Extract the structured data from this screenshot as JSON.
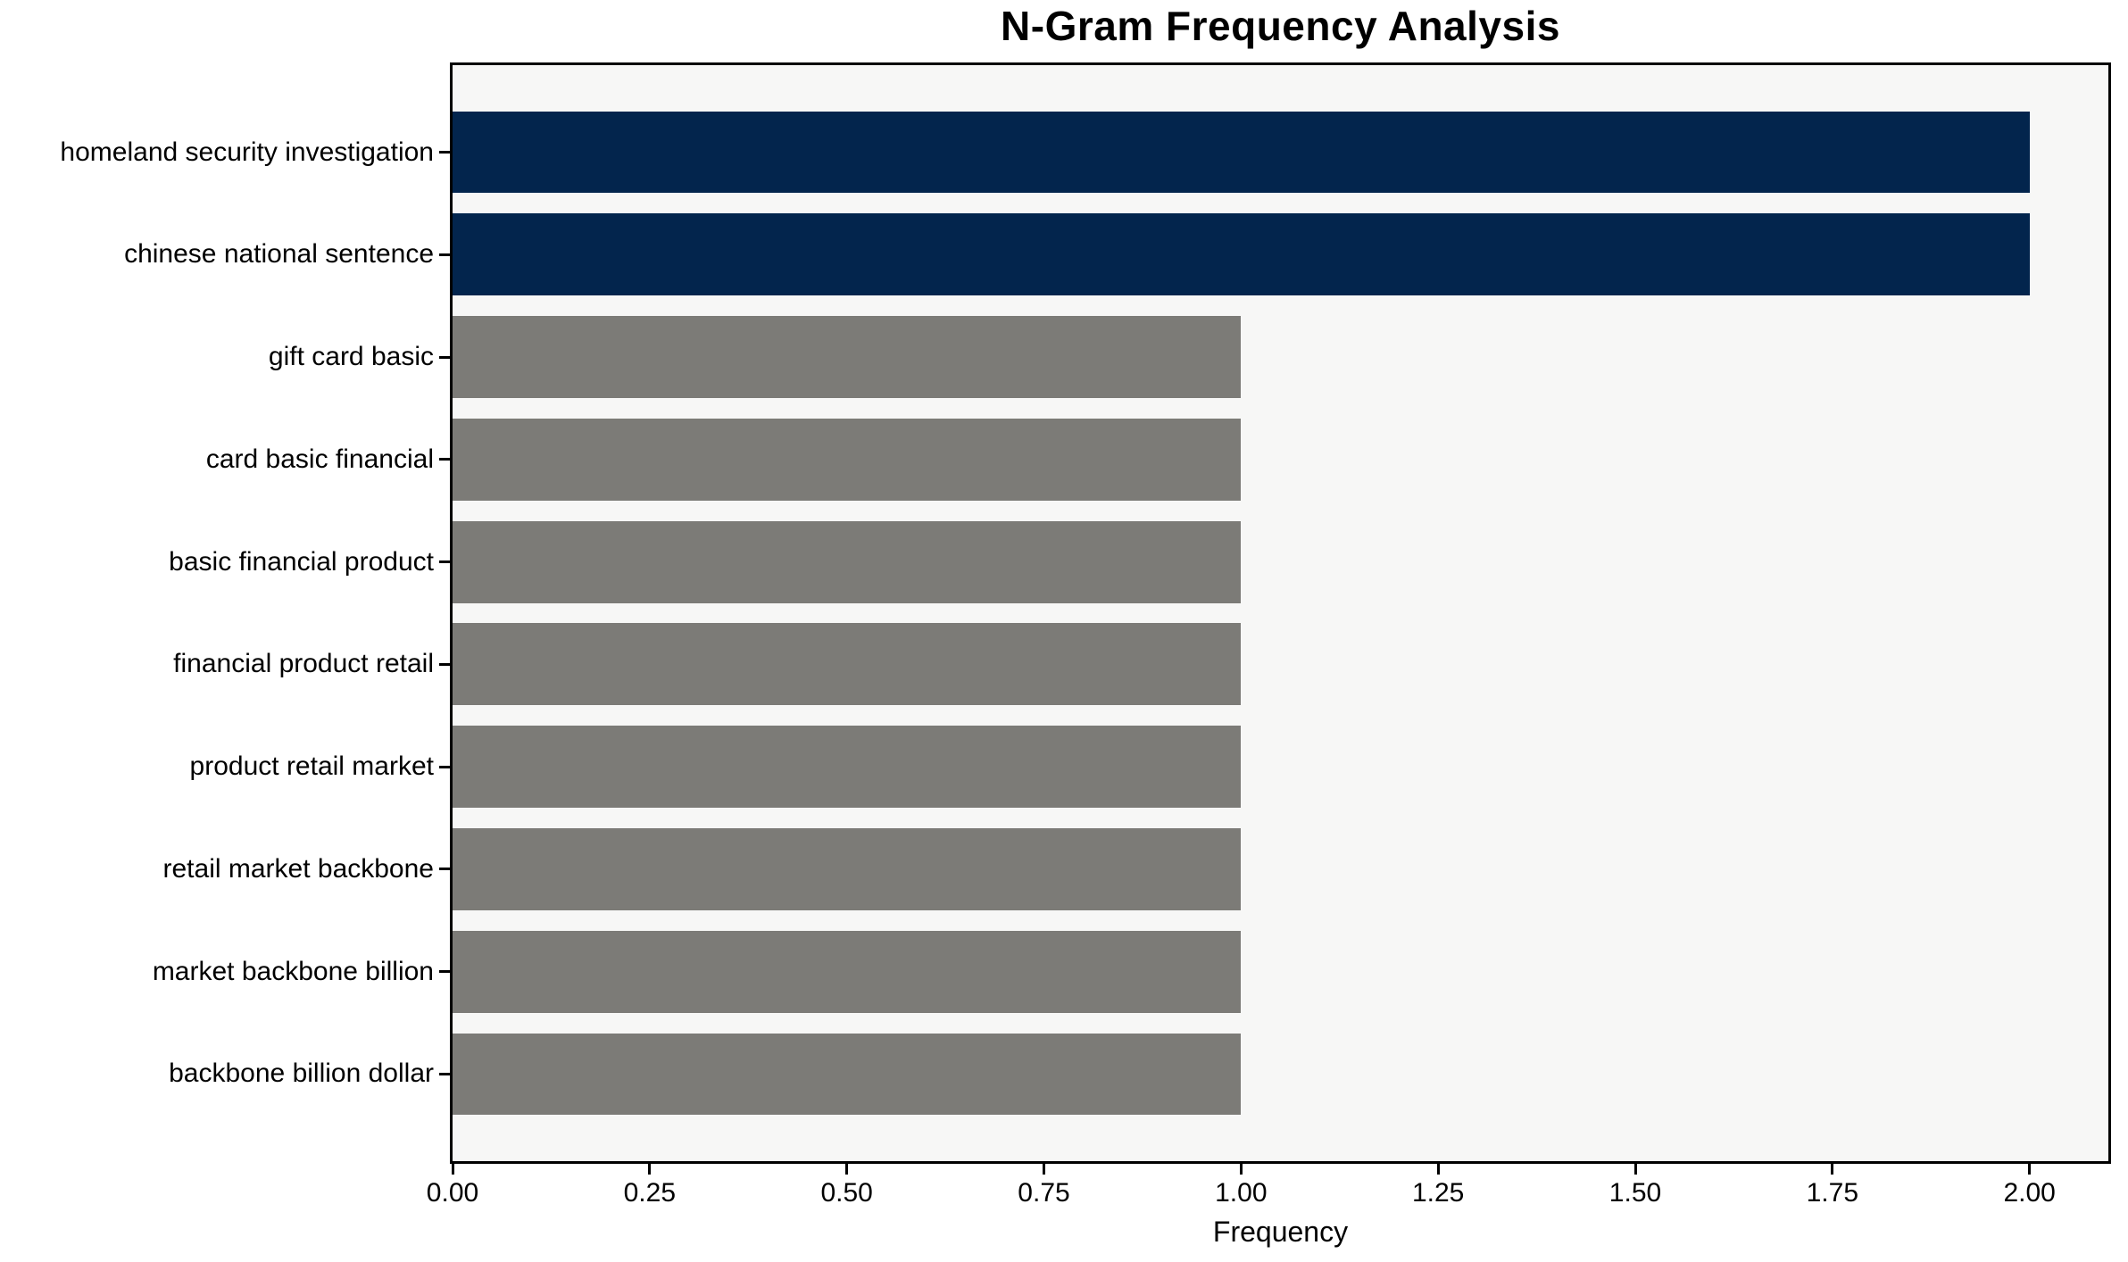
{
  "chart_data": {
    "type": "bar",
    "orientation": "horizontal",
    "title": "N-Gram Frequency Analysis",
    "xlabel": "Frequency",
    "ylabel": "",
    "categories": [
      "homeland security investigation",
      "chinese national sentence",
      "gift card basic",
      "card basic financial",
      "basic financial product",
      "financial product retail",
      "product retail market",
      "retail market backbone",
      "market backbone billion",
      "backbone billion dollar"
    ],
    "values": [
      2,
      2,
      1,
      1,
      1,
      1,
      1,
      1,
      1,
      1
    ],
    "bar_colors": [
      "#03254d",
      "#03254d",
      "#7c7b77",
      "#7c7b77",
      "#7c7b77",
      "#7c7b77",
      "#7c7b77",
      "#7c7b77",
      "#7c7b77",
      "#7c7b77"
    ],
    "highlight_color": "#03254d",
    "default_color": "#7c7b77",
    "plot_background": "#f7f7f6",
    "xlim": [
      0,
      2.1
    ],
    "x_ticks": [
      0,
      0.25,
      0.5,
      0.75,
      1.0,
      1.25,
      1.5,
      1.75,
      2.0
    ],
    "x_tick_labels": [
      "0.00",
      "0.25",
      "0.50",
      "0.75",
      "1.00",
      "1.25",
      "1.50",
      "1.75",
      "2.00"
    ],
    "grid": false,
    "legend": null
  }
}
